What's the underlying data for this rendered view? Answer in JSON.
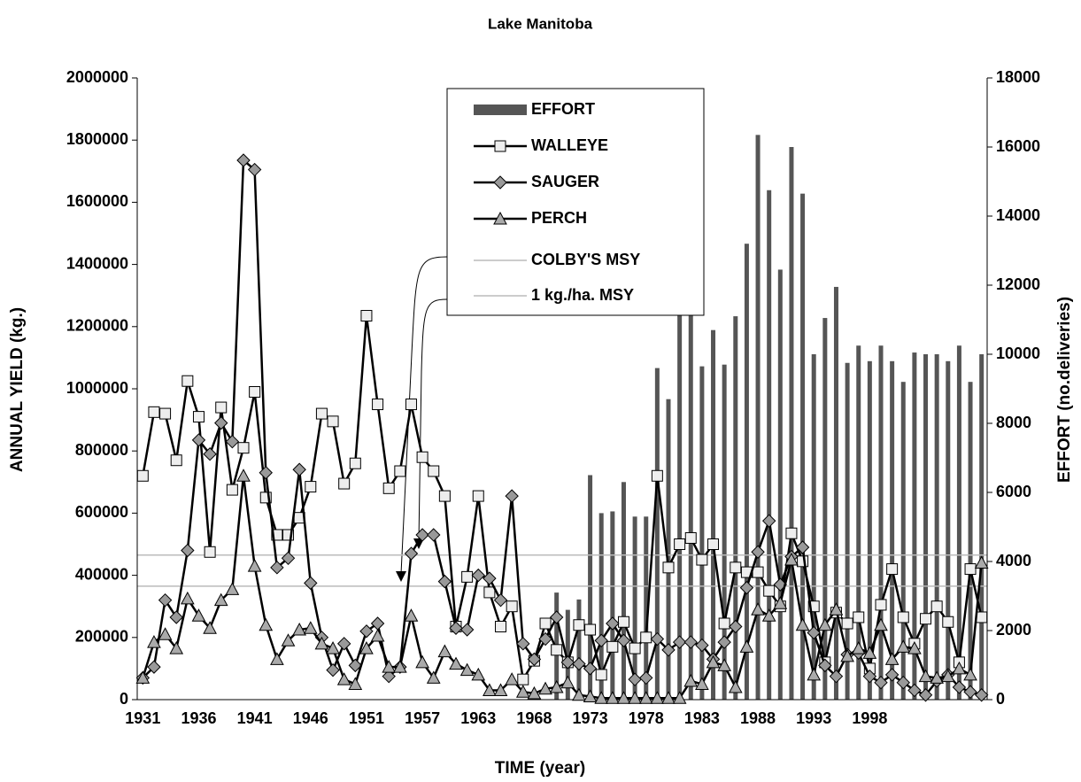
{
  "chart_data": {
    "type": "line",
    "title": "Lake Manitoba",
    "x_label": "TIME (year)",
    "y_label": "ANNUAL YIELD (kg.)",
    "y2_label": "EFFORT (no.deliveries)",
    "categories": [
      "1931",
      null,
      null,
      null,
      null,
      "1936",
      null,
      null,
      null,
      null,
      "1941",
      null,
      null,
      null,
      null,
      "1946",
      null,
      null,
      null,
      null,
      "1951",
      null,
      null,
      null,
      null,
      "1957",
      null,
      null,
      null,
      null,
      "1963",
      null,
      null,
      null,
      null,
      "1968",
      null,
      null,
      null,
      null,
      "1973",
      null,
      null,
      null,
      null,
      "1978",
      null,
      null,
      null,
      null,
      "1983",
      null,
      null,
      null,
      null,
      "1988",
      null,
      null,
      null,
      null,
      "1993",
      null,
      null,
      null,
      null,
      "1998",
      null,
      null,
      null,
      null,
      null,
      null,
      null,
      null,
      null,
      null
    ],
    "ylim": [
      0,
      2000000
    ],
    "yticks": [
      0,
      200000,
      400000,
      600000,
      800000,
      1000000,
      1200000,
      1400000,
      1600000,
      1800000,
      2000000
    ],
    "y2lim": [
      0,
      18000
    ],
    "y2ticks": [
      0,
      2000,
      4000,
      6000,
      8000,
      10000,
      12000,
      14000,
      16000,
      18000
    ],
    "series": [
      {
        "name": "EFFORT",
        "type": "bar",
        "axis": "y2",
        "color": "#555555",
        "values": [
          0,
          0,
          0,
          0,
          0,
          0,
          0,
          0,
          0,
          0,
          0,
          0,
          0,
          0,
          0,
          0,
          0,
          0,
          0,
          0,
          0,
          0,
          0,
          0,
          0,
          0,
          0,
          0,
          0,
          0,
          0,
          0,
          0,
          0,
          0,
          0,
          0,
          3100,
          2600,
          2900,
          6500,
          5400,
          5450,
          6300,
          5300,
          5300,
          9600,
          8700,
          11250,
          12350,
          9650,
          10700,
          9700,
          11100,
          13200,
          16350,
          14750,
          12450,
          16000,
          14650,
          10000,
          11050,
          11950,
          9750,
          10250,
          9800,
          10250,
          9800,
          9200,
          10050,
          10000,
          10000,
          9800,
          10250,
          9200,
          10000
        ]
      },
      {
        "name": "WALLEYE",
        "type": "line",
        "marker": "square",
        "color": "#eeeeee",
        "values": [
          720000,
          925000,
          920000,
          770000,
          1025000,
          910000,
          475000,
          940000,
          675000,
          810000,
          990000,
          650000,
          530000,
          530000,
          585000,
          685000,
          920000,
          895000,
          695000,
          760000,
          1235000,
          950000,
          680000,
          735000,
          950000,
          780000,
          735000,
          655000,
          235000,
          395000,
          655000,
          345000,
          235000,
          300000,
          65000,
          125000,
          245000,
          160000,
          120000,
          240000,
          225000,
          80000,
          170000,
          250000,
          165000,
          200000,
          720000,
          425000,
          500000,
          520000,
          450000,
          500000,
          245000,
          425000,
          410000,
          410000,
          350000,
          300000,
          535000,
          445000,
          300000,
          120000,
          280000,
          245000,
          265000,
          100000,
          305000,
          420000,
          265000,
          180000,
          260000,
          300000,
          250000,
          120000,
          420000,
          265000
        ]
      },
      {
        "name": "SAUGER",
        "type": "line",
        "marker": "diamond",
        "color": "#999999",
        "values": [
          70000,
          105000,
          320000,
          265000,
          480000,
          835000,
          790000,
          890000,
          830000,
          1735000,
          1705000,
          730000,
          425000,
          455000,
          740000,
          375000,
          200000,
          95000,
          180000,
          110000,
          220000,
          245000,
          75000,
          105000,
          470000,
          530000,
          530000,
          380000,
          230000,
          225000,
          400000,
          390000,
          320000,
          655000,
          180000,
          130000,
          195000,
          265000,
          120000,
          115000,
          100000,
          190000,
          245000,
          190000,
          65000,
          70000,
          195000,
          160000,
          185000,
          185000,
          175000,
          130000,
          185000,
          235000,
          360000,
          475000,
          575000,
          370000,
          460000,
          490000,
          215000,
          110000,
          75000,
          145000,
          150000,
          75000,
          55000,
          80000,
          55000,
          30000,
          15000,
          60000,
          80000,
          40000,
          25000,
          15000
        ]
      },
      {
        "name": "PERCH",
        "type": "line",
        "marker": "triangle",
        "color": "#aaaaaa",
        "values": [
          70000,
          185000,
          210000,
          165000,
          325000,
          270000,
          230000,
          320000,
          355000,
          720000,
          430000,
          240000,
          130000,
          190000,
          225000,
          230000,
          180000,
          165000,
          65000,
          50000,
          165000,
          205000,
          105000,
          105000,
          270000,
          120000,
          70000,
          155000,
          115000,
          95000,
          80000,
          30000,
          30000,
          65000,
          25000,
          20000,
          35000,
          40000,
          55000,
          15000,
          10000,
          5000,
          5000,
          5000,
          5000,
          5000,
          5000,
          5000,
          5000,
          60000,
          50000,
          120000,
          110000,
          40000,
          170000,
          290000,
          270000,
          310000,
          450000,
          240000,
          80000,
          240000,
          290000,
          140000,
          165000,
          150000,
          240000,
          130000,
          170000,
          165000,
          75000,
          70000,
          75000,
          100000,
          80000,
          440000
        ]
      }
    ],
    "reference_lines": [
      {
        "name": "COLBY'S MSY",
        "value": 465000,
        "color": "#bbbbbb"
      },
      {
        "name": "1 kg./ha. MSY",
        "value": 365000,
        "color": "#bbbbbb"
      }
    ]
  }
}
